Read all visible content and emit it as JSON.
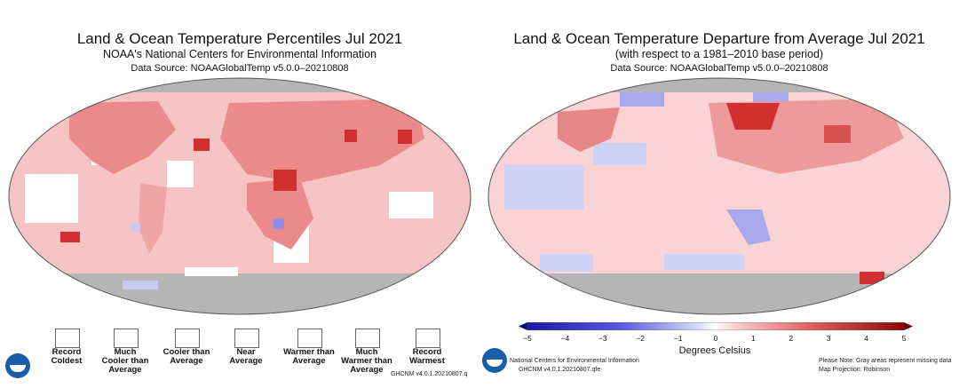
{
  "left": {
    "title": "Land & Ocean Temperature Percentiles Jul 2021",
    "subtitle": "NOAA's National Centers for Environmental Information",
    "source": "Data Source: NOAAGlobalTemp v5.0.0–20210808",
    "legend": [
      {
        "label": "Record\nColdest",
        "color": "#2b2bc8"
      },
      {
        "label": "Much\nCooler than\nAverage",
        "color": "#8b8be8"
      },
      {
        "label": "Cooler than\nAverage",
        "color": "#c8c8f5"
      },
      {
        "label": "Near\nAverage",
        "color": "#ffffff"
      },
      {
        "label": "Warmer than\nAverage",
        "color": "#f8c8c8"
      },
      {
        "label": "Much\nWarmer than\nAverage",
        "color": "#ea8a8a"
      },
      {
        "label": "Record\nWarmest",
        "color": "#d23030"
      }
    ],
    "footnote": "GHCNM v4.0.1.20210807.q"
  },
  "right": {
    "title": "Land & Ocean Temperature Departure from Average Jul 2021",
    "subtitle": "(with respect to a 1981–2010 base period)",
    "source": "Data Source: NOAAGlobalTemp v5.0.0–20210808",
    "colorbar_ticks": [
      "−5",
      "−4",
      "−3",
      "−2",
      "−1",
      "0",
      "1",
      "2",
      "3",
      "4",
      "5"
    ],
    "colorbar_range": [
      -5,
      5
    ],
    "unit": "Degrees Celsius",
    "credit_line1": "National Centers for Environmental Information",
    "credit_line2": "GHCNM v4.0.1.20210807.qfe",
    "note_line1": "Please Note: Gray areas represent missing data",
    "note_line2": "Map Projection: Robinson"
  },
  "colors": {
    "ocean_warm": "#f6c4c4",
    "land_warm": "#e88e8e",
    "record": "#d23030",
    "missing": "#b5b5b5",
    "cool": "#c9c9f2",
    "near": "#ffffff"
  }
}
